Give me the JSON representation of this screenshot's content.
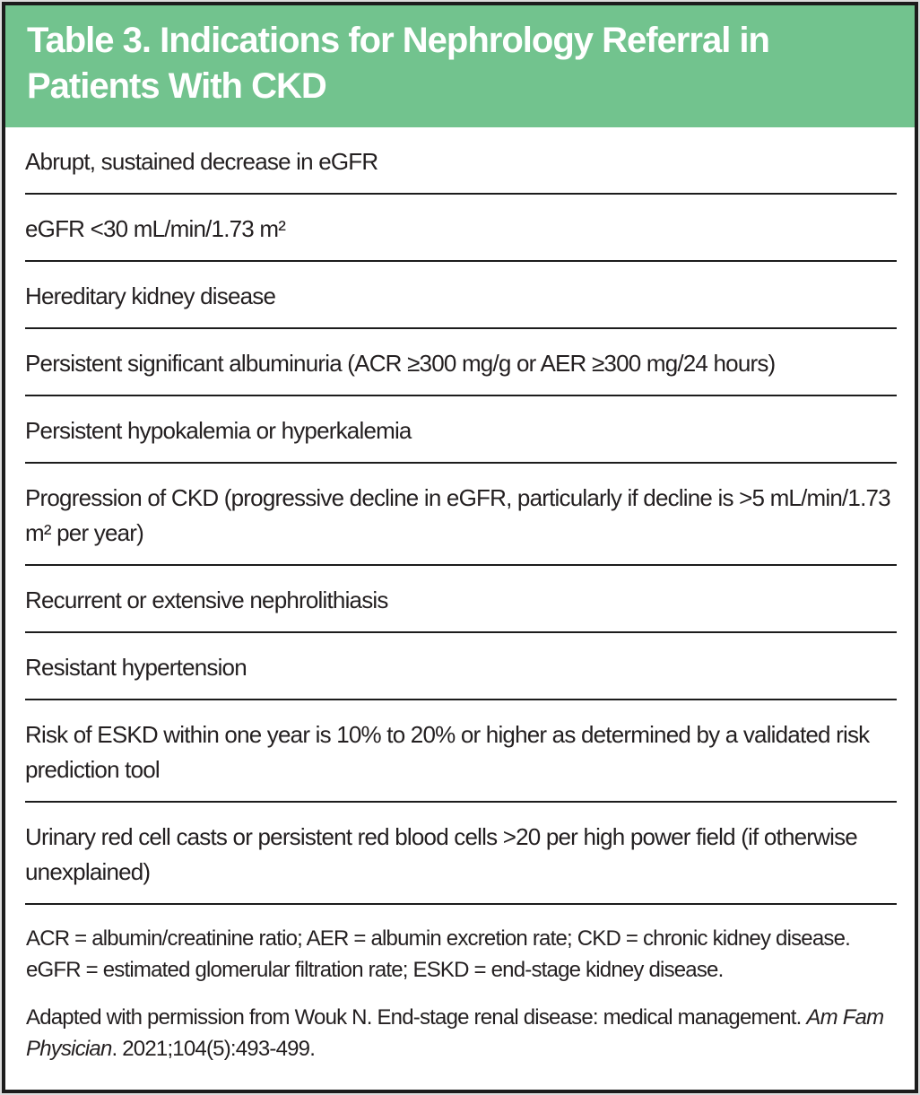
{
  "table": {
    "title": "Table 3. Indications for Nephrology Referral in Patients With CKD",
    "rows": [
      "Abrupt, sustained decrease in eGFR",
      "eGFR <30 mL/min/1.73 m²",
      "Hereditary kidney disease",
      "Persistent significant albuminuria (ACR ≥300 mg/g or AER ≥300 mg/24 hours)",
      "Persistent hypokalemia or hyperkalemia",
      "Progression of CKD (progressive decline in eGFR, particularly if decline is >5 mL/min/1.73 m² per year)",
      "Recurrent or extensive nephrolithiasis",
      "Resistant hypertension",
      "Risk of ESKD within one year is 10% to 20% or higher as determined by a validated risk prediction tool",
      "Urinary red cell casts or persistent red blood cells >20 per high power field (if otherwise unexplained)"
    ],
    "footnotes": {
      "abbreviations": "ACR = albumin/creatinine ratio; AER = albumin excretion rate; CKD = chronic kidney disease. eGFR = estimated glomerular filtration rate; ESKD = end-stage kidney disease.",
      "source_prefix": "Adapted with permission from Wouk N. End-stage renal disease: medical management. ",
      "source_journal": "Am Fam Physician",
      "source_suffix": ". 2021;104(5):493-499."
    },
    "colors": {
      "header_bg": "#72c38e",
      "header_text": "#ffffff",
      "body_text": "#231f20",
      "border": "#1c1c1c"
    }
  }
}
